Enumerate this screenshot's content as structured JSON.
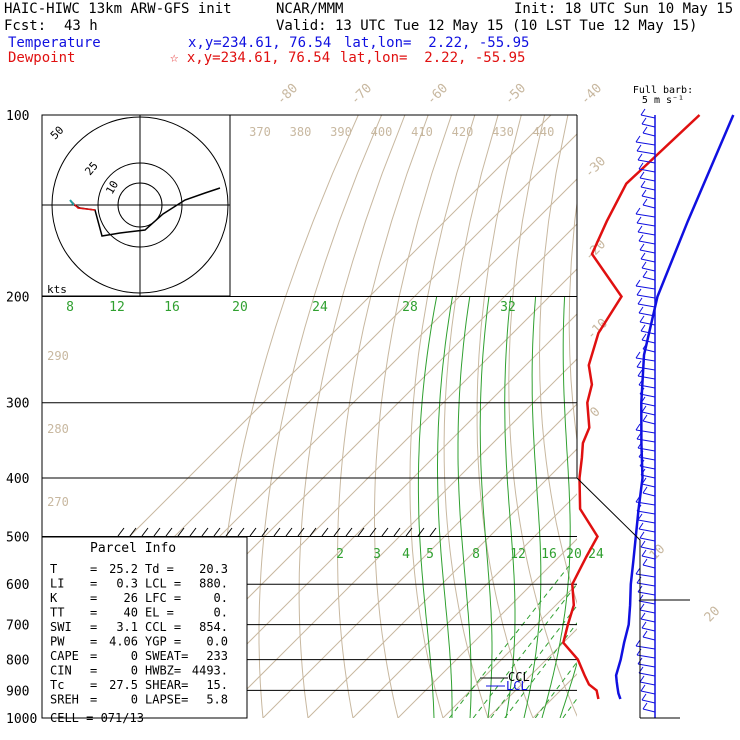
{
  "header": {
    "model": "HAIC-HIWC 13km ARW-GFS init",
    "org": "NCAR/MMM",
    "init": "Init: 18 UTC Sun 10 May 15",
    "fcst_label": "Fcst:",
    "fcst_value": "43 h",
    "valid": "Valid: 13 UTC Tue 12 May 15 (10 LST Tue 12 May 15)",
    "temp_label": "Temperature",
    "temp_xy": "x,y=234.61, 76.54",
    "temp_latlon": "lat,lon=  2.22, -55.95",
    "dew_label": "Dewpoint",
    "dew_xy": "☆ x,y=234.61, 76.54",
    "dew_latlon": "lat,lon=  2.22, -55.95",
    "barb_title": "Full barb:",
    "barb_units": "5 m s⁻¹"
  },
  "chart_data": {
    "type": "line",
    "title": "Skew-T log-P sounding",
    "pressure_levels": [
      "100",
      "200",
      "300",
      "400",
      "500",
      "600",
      "700",
      "800",
      "900",
      "1000"
    ],
    "isotherm_labels": [
      "-80",
      "-70",
      "-60",
      "-50",
      "-40",
      "-30",
      "-20",
      "-10",
      "0",
      "10",
      "20",
      "30",
      "40"
    ],
    "theta_labels": [
      "370",
      "380",
      "390",
      "400",
      "410",
      "420",
      "430",
      "440"
    ],
    "theta_left_labels": [
      "290",
      "280",
      "270"
    ],
    "mixing_ratio_upper": [
      "8",
      "12",
      "16",
      "20",
      "24",
      "28",
      "32"
    ],
    "mixing_ratio_lower": [
      "2",
      "3",
      "4",
      "5",
      "8",
      "12",
      "16",
      "20",
      "24"
    ],
    "series": [
      {
        "name": "Temperature",
        "color": "#1010e0",
        "points": [
          [
            100,
            -79.5
          ],
          [
            150,
            -66
          ],
          [
            200,
            -56
          ],
          [
            250,
            -46
          ],
          [
            300,
            -36
          ],
          [
            350,
            -27
          ],
          [
            400,
            -19
          ],
          [
            450,
            -13
          ],
          [
            500,
            -7.5
          ],
          [
            550,
            -2.5
          ],
          [
            600,
            2
          ],
          [
            650,
            6.5
          ],
          [
            700,
            10.5
          ],
          [
            750,
            13.5
          ],
          [
            800,
            16.5
          ],
          [
            850,
            19
          ],
          [
            870,
            20.5
          ],
          [
            890,
            22
          ],
          [
            910,
            23.5
          ],
          [
            930,
            25.2
          ]
        ]
      },
      {
        "name": "Dewpoint",
        "color": "#e01010",
        "points": [
          [
            100,
            -87
          ],
          [
            130,
            -88
          ],
          [
            150,
            -84
          ],
          [
            170,
            -80
          ],
          [
            200,
            -64
          ],
          [
            230,
            -61
          ],
          [
            260,
            -56
          ],
          [
            280,
            -51
          ],
          [
            300,
            -48
          ],
          [
            330,
            -42
          ],
          [
            350,
            -40
          ],
          [
            370,
            -37
          ],
          [
            400,
            -33
          ],
          [
            450,
            -26
          ],
          [
            500,
            -16
          ],
          [
            540,
            -14
          ],
          [
            600,
            -11
          ],
          [
            650,
            -6
          ],
          [
            700,
            -3
          ],
          [
            750,
            0
          ],
          [
            800,
            7
          ],
          [
            850,
            12
          ],
          [
            880,
            15
          ],
          [
            900,
            18
          ],
          [
            930,
            20.3
          ]
        ]
      }
    ]
  },
  "hodograph": {
    "label": "kts",
    "rings": [
      "10",
      "25",
      "50"
    ]
  },
  "parcel": {
    "title": "Parcel Info",
    "rows": [
      {
        "l1": "T",
        "v1": "25.2",
        "l2": "Td =",
        "v2": "20.3"
      },
      {
        "l1": "LI",
        "v1": "0.3",
        "l2": "LCL =",
        "v2": "880."
      },
      {
        "l1": "K",
        "v1": "26",
        "l2": "LFC =",
        "v2": "0."
      },
      {
        "l1": "TT",
        "v1": "40",
        "l2": "EL =",
        "v2": "0."
      },
      {
        "l1": "SWI",
        "v1": "3.1",
        "l2": "CCL =",
        "v2": "854."
      },
      {
        "l1": "PW",
        "v1": "4.06",
        "l2": "YGP =",
        "v2": "0.0"
      },
      {
        "l1": "CAPE",
        "v1": "0",
        "l2": "SWEAT=",
        "v2": "233"
      },
      {
        "l1": "CIN",
        "v1": "0",
        "l2": "HWBZ=",
        "v2": "4493."
      },
      {
        "l1": "Tc",
        "v1": "27.5",
        "l2": "SHEAR=",
        "v2": "15."
      },
      {
        "l1": "SREH",
        "v1": "0",
        "l2": "LAPSE=",
        "v2": "5.8"
      }
    ],
    "cell": "CELL = 071/13"
  },
  "markers": {
    "ccl": "CCL",
    "lcl": "LCL"
  }
}
